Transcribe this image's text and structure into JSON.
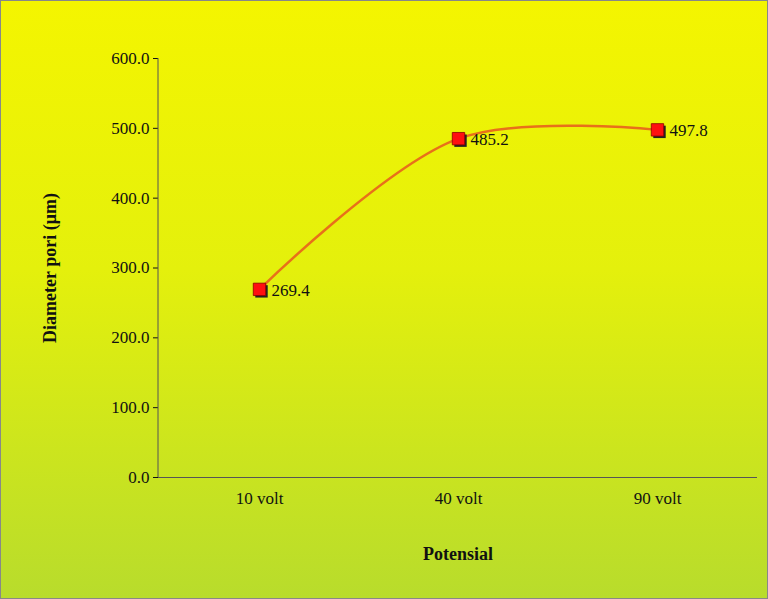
{
  "chart_data": {
    "type": "line",
    "categories": [
      "10 volt",
      "40 volt",
      "90 volt"
    ],
    "values": [
      269.4,
      485.2,
      497.8
    ],
    "x_label": "Potensial",
    "y_label": "Diameter pori (μm)",
    "ylim": [
      0,
      600
    ],
    "yticks": [
      {
        "value": 0,
        "label": "0.0"
      },
      {
        "value": 100,
        "label": "100.0"
      },
      {
        "value": 200,
        "label": "200.0"
      },
      {
        "value": 300,
        "label": "300.0"
      },
      {
        "value": 400,
        "label": "400.0"
      },
      {
        "value": 500,
        "label": "500.0"
      },
      {
        "value": 600,
        "label": "600.0"
      }
    ],
    "color": "#e8701a",
    "marker": "square",
    "data_labels": true,
    "grid": false
  }
}
